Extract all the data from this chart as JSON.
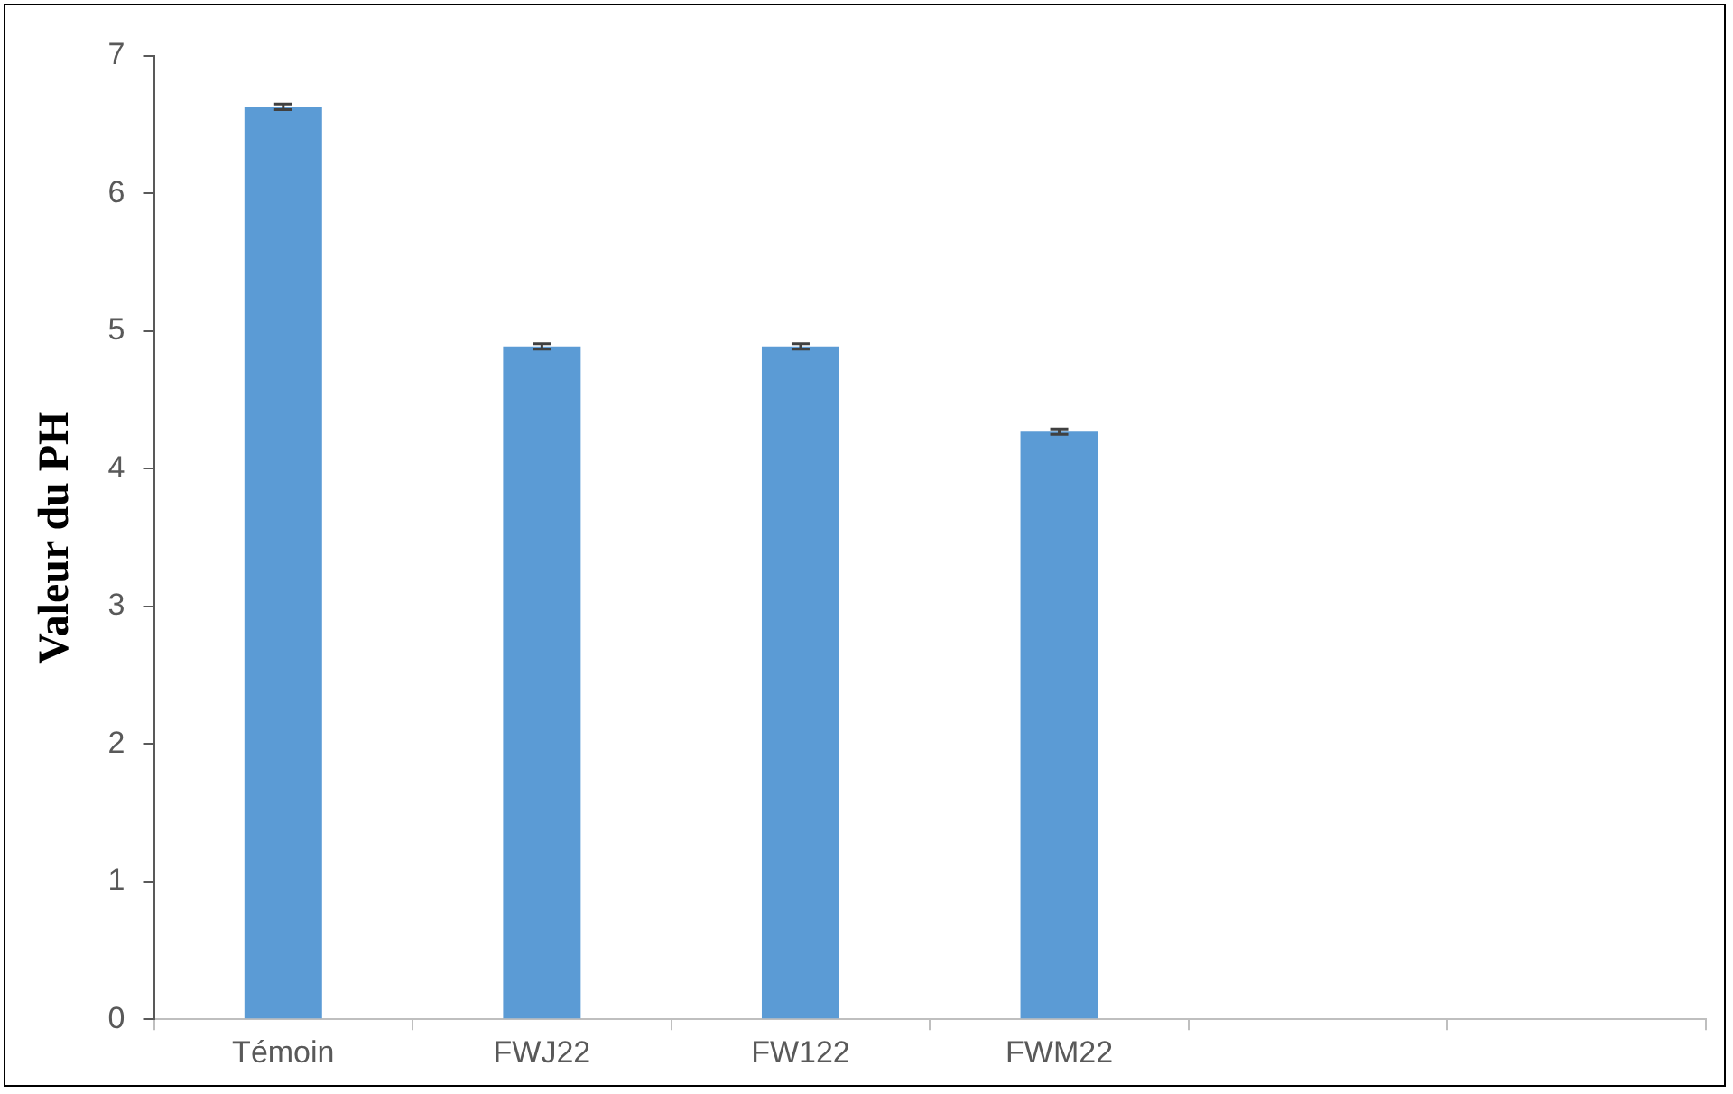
{
  "chart_data": {
    "type": "bar",
    "ylabel": "Valeur du PH",
    "categories": [
      "Témoin",
      "FWJ22",
      "FW122",
      "FWM22",
      null,
      null
    ],
    "values": [
      6.63,
      4.89,
      4.89,
      4.27,
      null,
      null
    ],
    "errors": [
      0.02,
      0.02,
      0.02,
      0.02,
      null,
      null
    ],
    "color": "#5b9bd5",
    "ylim": [
      0,
      7
    ],
    "yticks": [
      0,
      1,
      2,
      3,
      4,
      5,
      6,
      7
    ],
    "grid": false,
    "legend": false
  }
}
